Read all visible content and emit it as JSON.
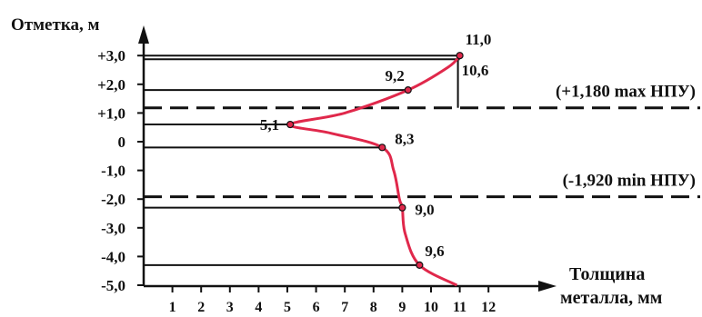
{
  "chart_data": {
    "type": "line",
    "ylabel": "Отметка, м",
    "xlabel_line1": "Толщина",
    "xlabel_line2": "металла, мм",
    "xlim": [
      0,
      12
    ],
    "ylim": [
      -5.0,
      3.0
    ],
    "x_ticks": [
      1,
      2,
      3,
      4,
      5,
      6,
      7,
      8,
      9,
      10,
      11,
      12
    ],
    "x_tick_labels": [
      "1",
      "2",
      "3",
      "4",
      "5",
      "6",
      "7",
      "8",
      "9",
      "10",
      "11",
      "12"
    ],
    "y_ticks": [
      3,
      2,
      1,
      0,
      -1,
      -2,
      -3,
      -4,
      -5
    ],
    "y_tick_labels": [
      "+3,0",
      "+2,0",
      "+1,0",
      "0",
      "-1,0",
      "-2,0",
      "-3,0",
      "-4,0",
      "-5,0"
    ],
    "profile": [
      {
        "x": 11.0,
        "y": 3.0
      },
      {
        "x": 10.6,
        "y": 2.6
      },
      {
        "x": 9.2,
        "y": 1.8
      },
      {
        "x": 7.0,
        "y": 1.0
      },
      {
        "x": 5.1,
        "y": 0.6
      },
      {
        "x": 6.5,
        "y": 0.3
      },
      {
        "x": 8.3,
        "y": -0.2
      },
      {
        "x": 8.7,
        "y": -1.0
      },
      {
        "x": 8.9,
        "y": -2.0
      },
      {
        "x": 9.0,
        "y": -2.3
      },
      {
        "x": 9.1,
        "y": -3.2
      },
      {
        "x": 9.6,
        "y": -4.3
      },
      {
        "x": 10.9,
        "y": -5.0
      }
    ],
    "measurements": [
      {
        "label": "11,0",
        "x": 11.0,
        "y": 3.0
      },
      {
        "label": "9,2",
        "x": 9.2,
        "y": 1.8
      },
      {
        "label": "5,1",
        "x": 5.1,
        "y": 0.6
      },
      {
        "label": "8,3",
        "x": 8.3,
        "y": -0.2
      },
      {
        "label": "9,0",
        "x": 9.0,
        "y": -2.3
      },
      {
        "label": "9,6",
        "x": 9.6,
        "y": -4.3
      }
    ],
    "extra_label": {
      "label": "10,6",
      "x": 11.0,
      "y": 2.85
    },
    "reference_lines": [
      {
        "label": "(+1,180 max НПУ)",
        "y": 1.18
      },
      {
        "label": "(-1,920 min НПУ)",
        "y": -1.92
      }
    ],
    "colors": {
      "profile": "#e0284b",
      "axis": "#111111"
    }
  }
}
